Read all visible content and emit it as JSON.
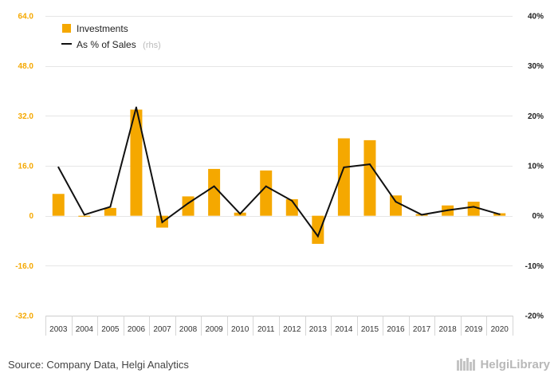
{
  "chart_data": {
    "type": "bar+line",
    "categories": [
      "2003",
      "2004",
      "2005",
      "2006",
      "2007",
      "2008",
      "2009",
      "2010",
      "2011",
      "2012",
      "2013",
      "2014",
      "2015",
      "2016",
      "2017",
      "2018",
      "2019",
      "2020"
    ],
    "series": [
      {
        "name": "Investments",
        "type": "bar",
        "axis": "left",
        "color": "#f5a800",
        "values": [
          7.0,
          -0.3,
          2.5,
          34.0,
          -3.8,
          6.2,
          15.0,
          1.0,
          14.5,
          5.3,
          -9.0,
          24.8,
          24.2,
          6.5,
          0.5,
          3.3,
          4.5,
          0.8
        ]
      },
      {
        "name": "As % of Sales",
        "axis_note": "(rhs)",
        "type": "line",
        "axis": "right",
        "color": "#111111",
        "values": [
          9.7,
          0.2,
          1.8,
          21.7,
          -1.3,
          2.5,
          5.9,
          0.4,
          5.9,
          3.0,
          -4.1,
          9.7,
          10.3,
          2.8,
          0.2,
          1.1,
          1.8,
          0.3
        ]
      }
    ],
    "y_left": {
      "min": -32,
      "max": 64,
      "ticks": [
        64.0,
        48.0,
        32.0,
        16.0,
        0,
        -16.0,
        -32.0
      ],
      "tick_labels": [
        "64.0",
        "48.0",
        "32.0",
        "16.0",
        "0",
        "-16.0",
        "-32.0"
      ]
    },
    "y_right": {
      "min": -20,
      "max": 40,
      "ticks": [
        40,
        30,
        20,
        10,
        0,
        -10,
        -20
      ],
      "tick_labels": [
        "40%",
        "30%",
        "20%",
        "10%",
        "0%",
        "-10%",
        "-20%"
      ]
    },
    "legend": {
      "position": "top-left"
    },
    "grid": true
  },
  "footer": {
    "source": "Source: Company Data, Helgi Analytics",
    "logo": "HelgiLibrary"
  }
}
